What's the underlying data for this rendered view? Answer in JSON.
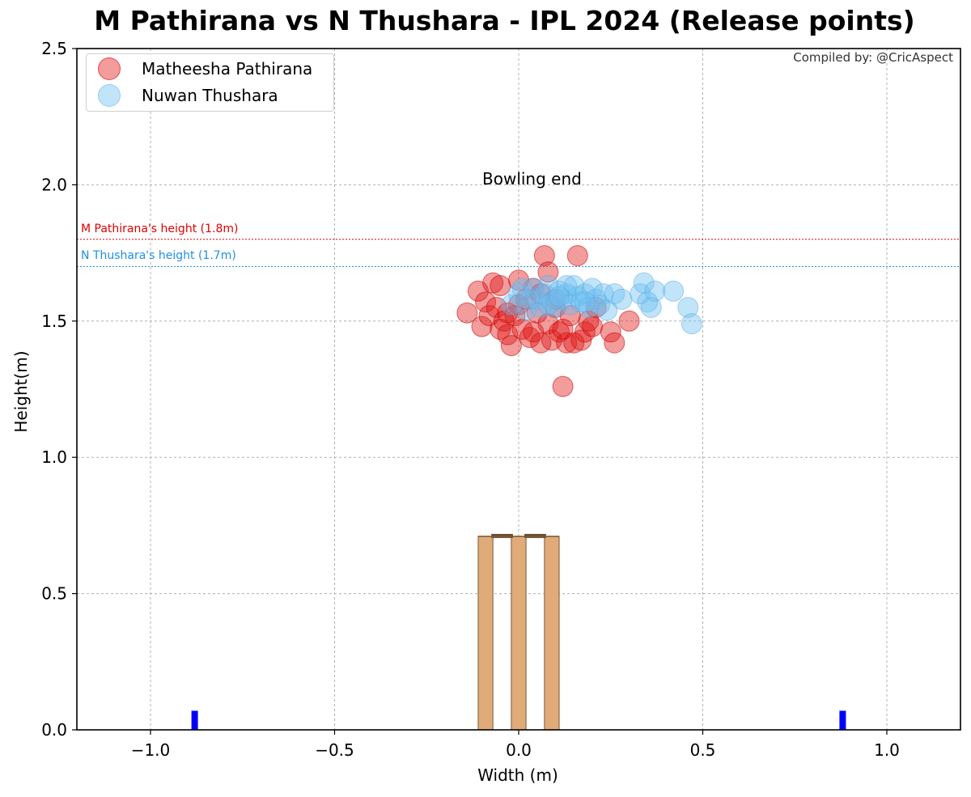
{
  "colors": {
    "pathirana": "#e00000",
    "thushara": "#1e90e6",
    "pathirana_fill": "rgba(225, 20, 20, 0.42)",
    "thushara_fill": "rgba(110, 190, 240, 0.42)",
    "stump": "#e0ab78",
    "stump_edge": "#7a5a3a",
    "bail": "#6b4a2b",
    "marker": "#0000ff"
  },
  "chart_data": {
    "type": "scatter",
    "title": "M Pathirana vs N Thushara - IPL 2024 (Release points)",
    "xlabel": "Width (m)",
    "ylabel": "Height(m)",
    "xlim": [
      -1.2,
      1.2
    ],
    "ylim": [
      0.0,
      2.5
    ],
    "xticks": [
      -1.0,
      -0.5,
      0.0,
      0.5,
      1.0
    ],
    "xtick_labels": [
      "−1.0",
      "−0.5",
      "0.0",
      "0.5",
      "1.0"
    ],
    "yticks": [
      0.0,
      0.5,
      1.0,
      1.5,
      2.0,
      2.5
    ],
    "ytick_labels": [
      "0.0",
      "0.5",
      "1.0",
      "1.5",
      "2.0",
      "2.5"
    ],
    "grid": true,
    "legend_position": "top-left",
    "annotation": "Bowling end",
    "credit": "Compiled by: @CricAspect",
    "reference_lines": [
      {
        "label": "M Pathirana's height (1.8m)",
        "y": 1.8,
        "color": "#e00000"
      },
      {
        "label": "N Thushara's height (1.7m)",
        "y": 1.7,
        "color": "#1e90e6"
      }
    ],
    "stumps": [
      {
        "x_left": -0.11,
        "x_right": -0.07,
        "height": 0.71
      },
      {
        "x_left": -0.02,
        "x_right": 0.02,
        "height": 0.71
      },
      {
        "x_left": 0.07,
        "x_right": 0.11,
        "height": 0.71
      }
    ],
    "crease_markers": [
      {
        "x": -0.88,
        "height": 0.07
      },
      {
        "x": 0.88,
        "height": 0.07
      }
    ],
    "series": [
      {
        "name": "Matheesha Pathirana",
        "color": "#e00000",
        "points": [
          [
            -0.14,
            1.53
          ],
          [
            -0.11,
            1.61
          ],
          [
            -0.1,
            1.48
          ],
          [
            -0.07,
            1.64
          ],
          [
            -0.09,
            1.57
          ],
          [
            -0.08,
            1.52
          ],
          [
            -0.06,
            1.55
          ],
          [
            -0.05,
            1.47
          ],
          [
            -0.04,
            1.5
          ],
          [
            -0.03,
            1.45
          ],
          [
            -0.02,
            1.41
          ],
          [
            -0.01,
            1.52
          ],
          [
            0.0,
            1.65
          ],
          [
            0.01,
            1.47
          ],
          [
            0.02,
            1.58
          ],
          [
            0.03,
            1.44
          ],
          [
            0.04,
            1.62
          ],
          [
            0.05,
            1.53
          ],
          [
            0.06,
            1.6
          ],
          [
            0.07,
            1.74
          ],
          [
            0.08,
            1.68
          ],
          [
            0.08,
            1.49
          ],
          [
            0.09,
            1.43
          ],
          [
            0.1,
            1.55
          ],
          [
            0.11,
            1.46
          ],
          [
            0.12,
            1.26
          ],
          [
            0.13,
            1.42
          ],
          [
            0.14,
            1.52
          ],
          [
            0.15,
            1.42
          ],
          [
            0.16,
            1.74
          ],
          [
            0.17,
            1.43
          ],
          [
            0.18,
            1.46
          ],
          [
            0.19,
            1.5
          ],
          [
            0.2,
            1.48
          ],
          [
            0.21,
            1.55
          ],
          [
            0.25,
            1.46
          ],
          [
            0.26,
            1.42
          ],
          [
            0.3,
            1.5
          ],
          [
            -0.05,
            1.63
          ],
          [
            0.0,
            1.56
          ],
          [
            0.04,
            1.46
          ],
          [
            0.1,
            1.58
          ],
          [
            -0.03,
            1.53
          ],
          [
            0.06,
            1.42
          ],
          [
            0.12,
            1.47
          ]
        ]
      },
      {
        "name": "Nuwan Thushara",
        "color": "#1e90e6",
        "points": [
          [
            -0.02,
            1.56
          ],
          [
            0.0,
            1.6
          ],
          [
            0.02,
            1.54
          ],
          [
            0.04,
            1.62
          ],
          [
            0.05,
            1.58
          ],
          [
            0.06,
            1.55
          ],
          [
            0.07,
            1.6
          ],
          [
            0.08,
            1.63
          ],
          [
            0.09,
            1.57
          ],
          [
            0.1,
            1.55
          ],
          [
            0.11,
            1.61
          ],
          [
            0.12,
            1.58
          ],
          [
            0.13,
            1.6
          ],
          [
            0.14,
            1.56
          ],
          [
            0.15,
            1.63
          ],
          [
            0.16,
            1.59
          ],
          [
            0.17,
            1.57
          ],
          [
            0.18,
            1.6
          ],
          [
            0.19,
            1.55
          ],
          [
            0.2,
            1.62
          ],
          [
            0.21,
            1.58
          ],
          [
            0.22,
            1.56
          ],
          [
            0.23,
            1.6
          ],
          [
            0.24,
            1.54
          ],
          [
            0.26,
            1.6
          ],
          [
            0.28,
            1.58
          ],
          [
            0.33,
            1.6
          ],
          [
            0.34,
            1.64
          ],
          [
            0.35,
            1.57
          ],
          [
            0.36,
            1.55
          ],
          [
            0.37,
            1.61
          ],
          [
            0.42,
            1.61
          ],
          [
            0.46,
            1.55
          ],
          [
            0.47,
            1.49
          ],
          [
            0.03,
            1.58
          ],
          [
            0.08,
            1.56
          ],
          [
            0.13,
            1.63
          ],
          [
            0.18,
            1.57
          ],
          [
            0.01,
            1.62
          ],
          [
            0.11,
            1.59
          ]
        ]
      }
    ]
  }
}
